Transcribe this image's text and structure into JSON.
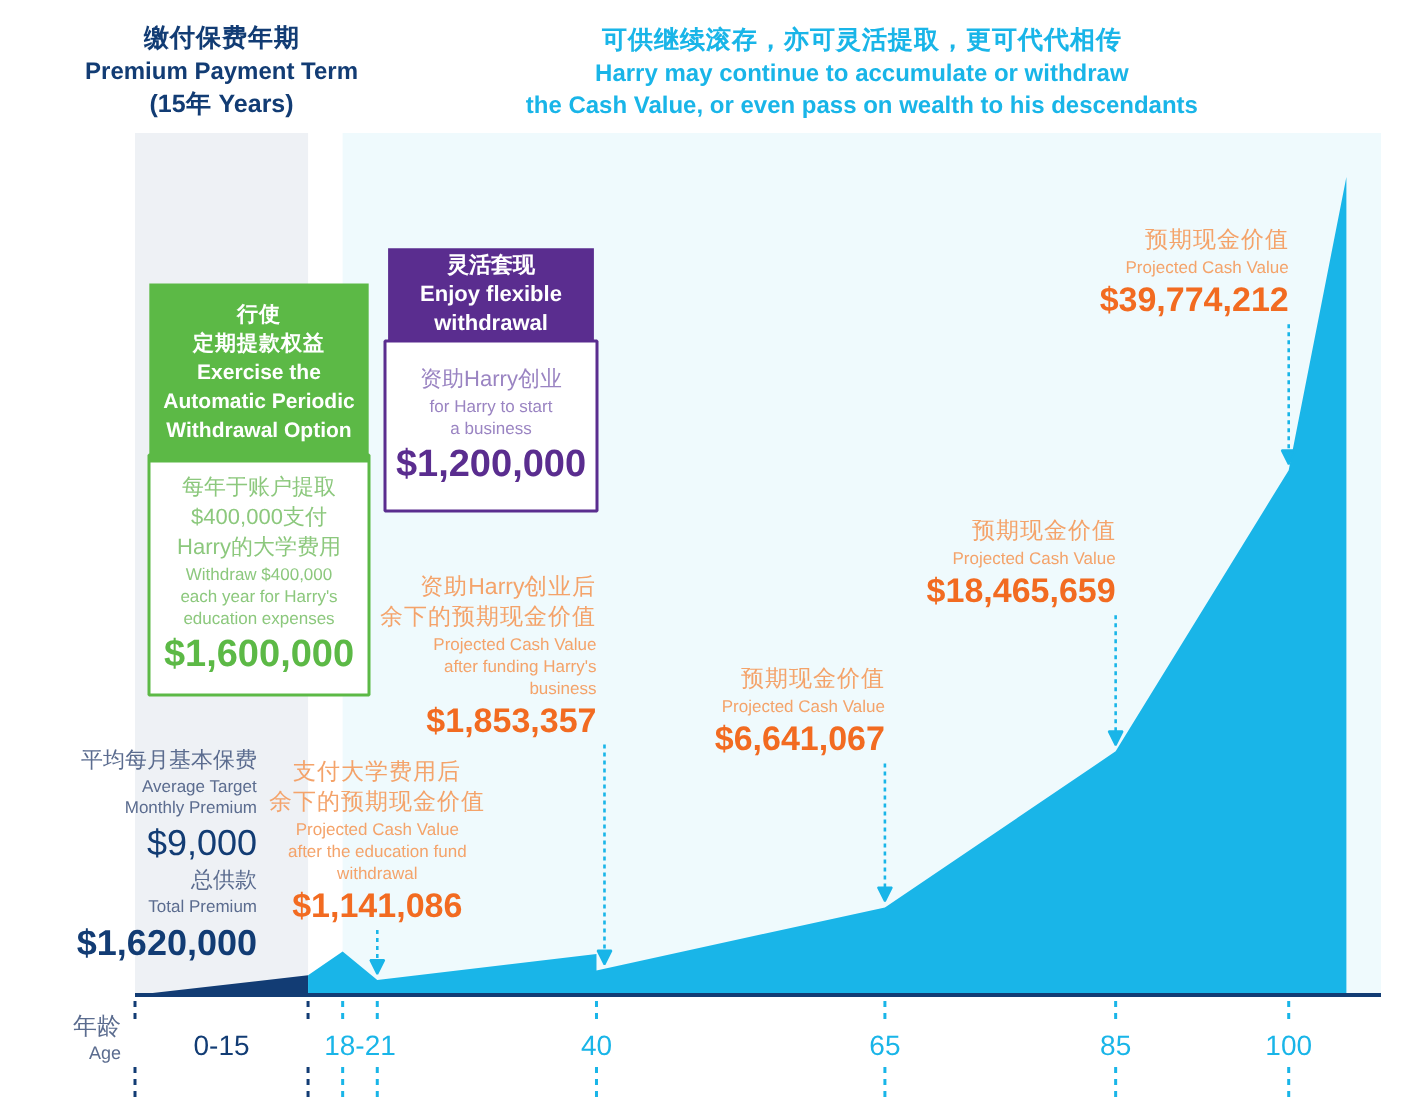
{
  "chart_data": {
    "type": "area",
    "xlabel": "年龄\nAge",
    "xlim": [
      0,
      108
    ],
    "xticks": [
      {
        "value": 0,
        "label": null
      },
      {
        "value": 7.5,
        "label": "0-15"
      },
      {
        "value": 15,
        "label": null
      },
      {
        "value": 18,
        "label": null
      },
      {
        "value": 19.5,
        "label": "18-21"
      },
      {
        "value": 21,
        "label": null
      },
      40,
      65,
      85,
      100
    ],
    "series": [
      {
        "color": "#123c74",
        "x": [
          0,
          15
        ],
        "values": [
          0,
          1500000
        ]
      },
      {
        "color": "#19b5e8",
        "x": [
          15,
          18,
          21,
          40,
          40,
          65,
          85,
          100,
          105
        ],
        "values": [
          1500000,
          3300000,
          1141086,
          3100000,
          1853357,
          6641067,
          18465659,
          39774212,
          62000000
        ],
        "value_labels": [
          null,
          null,
          "$1,141,086",
          null,
          "$1,853,357",
          "$6,641,067",
          "$18,465,659",
          "$39,774,212",
          null
        ]
      }
    ],
    "bands": [
      {
        "axis": "x",
        "from": 0,
        "to": 15,
        "label": "缴付保费年期\nPremium Payment Term\n(15年 Years)",
        "color": "#123c74"
      },
      {
        "axis": "x",
        "from": 18,
        "to": 108,
        "label": "可供继续滚存，亦可灵活提取，更可代代相传\nHarry may continue to accumulate or withdraw\nthe Cash Value, or even pass on wealth to his descendants",
        "color": "#19b5e8"
      }
    ],
    "annotations": [
      "支付大学费用后余下的预期现金价值\nProjected Cash Value\nafter the education fund\nwithdrawal",
      "资助Harry创业后余下的预期现金价值\nProjected Cash Value\nafter funding Harry's\nbusiness",
      "预期现金价值\nProjected Cash Value",
      "预期现金价值\nProjected Cash Value",
      "预期现金价值\nProjected Cash Value",
      "行使定期提款权益\nExercise the\nAutomatic Periodic\nWithdrawal Option",
      "每年于账户提取$400,000支付Harry的大学费用\nWithdraw $400,000\neach year for Harry's\neducation expenses",
      "$1,600,000",
      "灵活套现\nEnjoy flexible\nwithdrawal",
      "资助Harry创业\nfor Harry to start\na business",
      "$1,200,000",
      "平均每月基本保费\nAverage Target\nMonthly Premium",
      "$9,000",
      "总供款\nTotal Premium",
      "$1,620,000"
    ]
  }
}
